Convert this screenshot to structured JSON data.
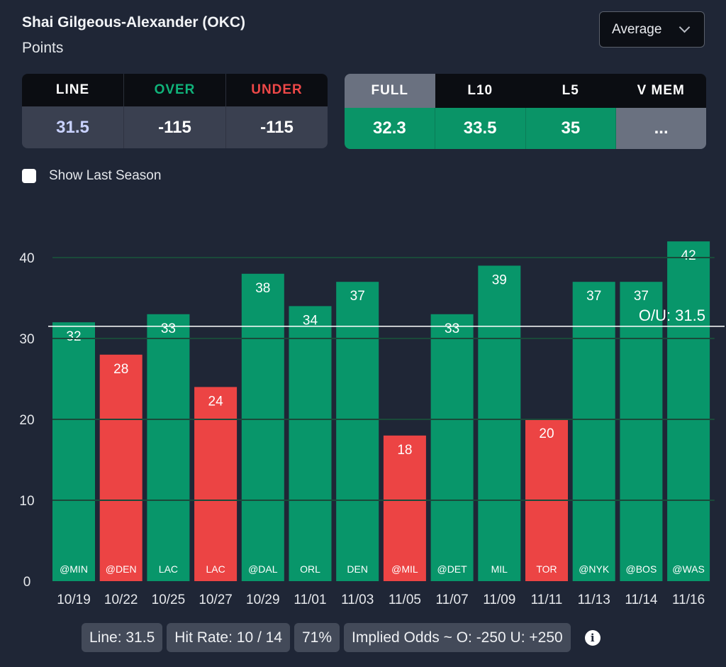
{
  "header": {
    "player": "Shai Gilgeous-Alexander (OKC)",
    "stat": "Points"
  },
  "stat_select": {
    "value": "Average",
    "icon": "chevron-down-icon"
  },
  "line_card": {
    "headers": [
      "LINE",
      "OVER",
      "UNDER"
    ],
    "values": [
      "31.5",
      "-115",
      "-115"
    ]
  },
  "avg_card": {
    "headers": [
      "FULL",
      "L10",
      "L5",
      "V MEM"
    ],
    "active_tab": "FULL",
    "values": [
      "32.3",
      "33.5",
      "35",
      "..."
    ]
  },
  "show_last_season": {
    "label": "Show Last Season",
    "checked": false
  },
  "chart_data": {
    "type": "bar",
    "categories": [
      "10/19",
      "10/22",
      "10/25",
      "10/27",
      "10/29",
      "11/01",
      "11/03",
      "11/05",
      "11/07",
      "11/09",
      "11/11",
      "11/13",
      "11/14",
      "11/16"
    ],
    "opponents": [
      "@MIN",
      "@DEN",
      "LAC",
      "LAC",
      "@DAL",
      "ORL",
      "DEN",
      "@MIL",
      "@DET",
      "MIL",
      "TOR",
      "@NYK",
      "@BOS",
      "@WAS"
    ],
    "values": [
      32,
      28,
      33,
      24,
      38,
      34,
      37,
      18,
      33,
      39,
      20,
      37,
      37,
      42
    ],
    "ylim": [
      0,
      40
    ],
    "yticks": [
      0,
      10,
      20,
      30,
      40
    ],
    "line": {
      "value": 31.5,
      "label": "O/U: 31.5"
    },
    "grid": true,
    "colors": {
      "over": "#08966a",
      "under": "#ec4444",
      "grid": "#1a4a3a",
      "line": "#ffffff"
    }
  },
  "footer": {
    "line": "Line: 31.5",
    "hit_rate": "Hit Rate: 10 / 14",
    "pct": "71%",
    "implied": "Implied Odds ~ O: -250 U: +250",
    "info_icon": "info-icon"
  },
  "colors": {
    "background": "#1f2636",
    "over_text": "#10b37a",
    "under_text": "#ee4848",
    "line_text": "#c9d2ff"
  }
}
